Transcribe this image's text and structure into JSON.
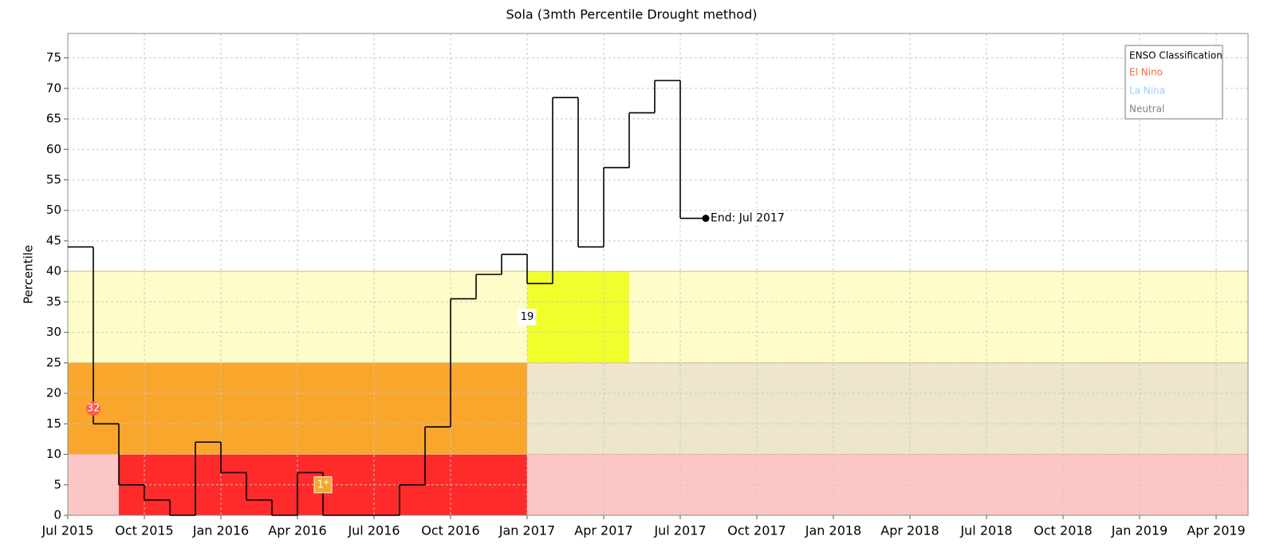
{
  "chart_data": {
    "type": "step",
    "title": "Sola (3mth Percentile Drought method)",
    "y_label": "Percentile",
    "x": [
      0,
      1,
      2,
      3,
      4,
      5,
      6,
      7,
      8,
      9,
      10,
      11,
      12,
      13,
      14,
      15,
      16,
      17,
      18,
      19,
      20,
      21,
      22,
      23,
      24,
      25
    ],
    "series": [
      {
        "name": "Percentile",
        "color": "#000000",
        "values": [
          44,
          15,
          5,
          2.5,
          0,
          12,
          7,
          2.5,
          0,
          7,
          0,
          0,
          0,
          5,
          14.5,
          35.5,
          39.5,
          42.8,
          38,
          68.5,
          44,
          57,
          66,
          71.3,
          48.7,
          48.7
        ]
      }
    ],
    "end_label": "End: Jul 2017",
    "xlim": [
      0,
      46.25
    ],
    "xticks": [
      {
        "value": 0,
        "label": "Jul 2015"
      },
      {
        "value": 3,
        "label": "Oct 2015"
      },
      {
        "value": 6,
        "label": "Jan 2016"
      },
      {
        "value": 9,
        "label": "Apr 2016"
      },
      {
        "value": 12,
        "label": "Jul 2016"
      },
      {
        "value": 15,
        "label": "Oct 2016"
      },
      {
        "value": 18,
        "label": "Jan 2017"
      },
      {
        "value": 21,
        "label": "Apr 2017"
      },
      {
        "value": 24,
        "label": "Jul 2017"
      },
      {
        "value": 27,
        "label": "Oct 2017"
      },
      {
        "value": 30,
        "label": "Jan 2018"
      },
      {
        "value": 33,
        "label": "Apr 2018"
      },
      {
        "value": 36,
        "label": "Jul 2018"
      },
      {
        "value": 39,
        "label": "Oct 2018"
      },
      {
        "value": 42,
        "label": "Jan 2019"
      },
      {
        "value": 45,
        "label": "Apr 2019"
      }
    ],
    "ylim": [
      0,
      79
    ],
    "yticks": [
      0,
      5,
      10,
      15,
      20,
      25,
      30,
      35,
      40,
      45,
      50,
      55,
      60,
      65,
      70,
      75
    ],
    "grid": true,
    "bands": [
      {
        "y0": 0,
        "y1": 10,
        "color": "#fdc6c6"
      },
      {
        "y0": 10,
        "y1": 25,
        "color": "#ede5cc"
      },
      {
        "y0": 25,
        "y1": 40,
        "color": "#fefdc9"
      }
    ],
    "regions": [
      {
        "x0": 0,
        "x1": 18,
        "y0": 10,
        "y1": 25,
        "color": "#f9a62d"
      },
      {
        "x0": 2,
        "x1": 18,
        "y0": 0,
        "y1": 10,
        "color": "#ff2b2b"
      },
      {
        "x0": 18,
        "x1": 22,
        "y0": 25,
        "y1": 40,
        "color": "#f0ff2b"
      }
    ],
    "annotations": [
      {
        "x": 1,
        "y": 17.5,
        "text": "32",
        "shape": "circle",
        "color": "#ff5a4a"
      },
      {
        "x": 10,
        "y": 5,
        "text": "1*",
        "shape": "box",
        "color": "#f9a62d"
      },
      {
        "x": 18,
        "y": 32.5,
        "text": "19",
        "shape": "box",
        "color": "#ffffff"
      }
    ],
    "legend": {
      "position": "upper right",
      "title": "ENSO Classification",
      "items": [
        {
          "name": "El Nino",
          "color": "#ff6633"
        },
        {
          "name": "La Nina",
          "color": "#99ccff"
        },
        {
          "name": "Neutral",
          "color": "#808080"
        }
      ]
    }
  }
}
